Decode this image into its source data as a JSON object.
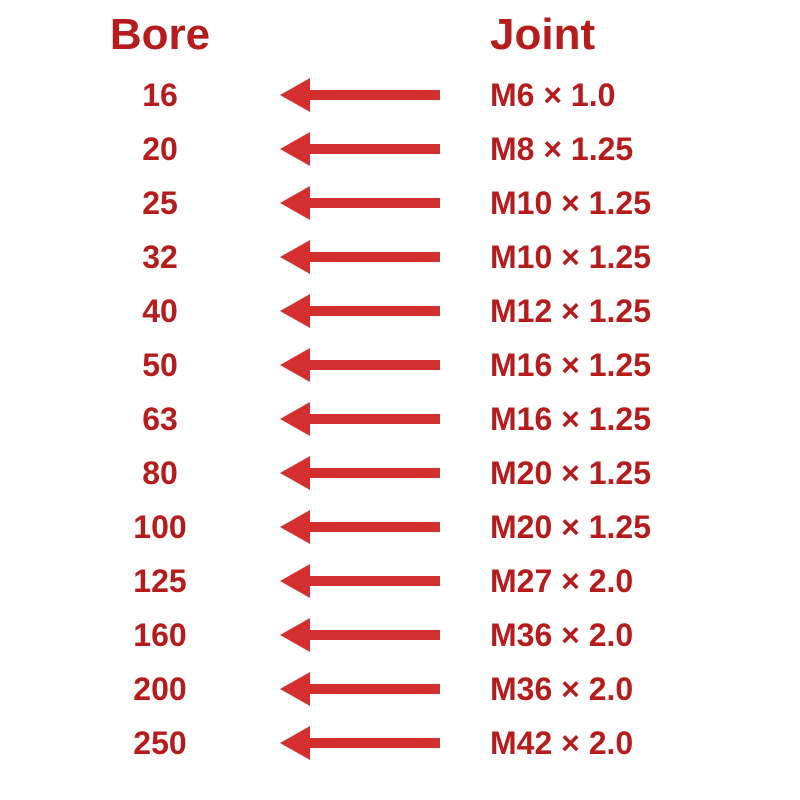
{
  "colors": {
    "text": "#b71c1c",
    "arrow": "#d32f2f",
    "background": "#ffffff"
  },
  "typography": {
    "header_fontsize": 44,
    "body_fontsize": 32,
    "font_weight": "bold",
    "font_family": "Arial, Helvetica, sans-serif"
  },
  "headers": {
    "bore": "Bore",
    "joint": "Joint"
  },
  "rows": [
    {
      "bore": "16",
      "joint": "M6 × 1.0"
    },
    {
      "bore": "20",
      "joint": "M8 × 1.25"
    },
    {
      "bore": "25",
      "joint": "M10 × 1.25"
    },
    {
      "bore": "32",
      "joint": "M10 × 1.25"
    },
    {
      "bore": "40",
      "joint": "M12 × 1.25"
    },
    {
      "bore": "50",
      "joint": "M16 × 1.25"
    },
    {
      "bore": "63",
      "joint": "M16 × 1.25"
    },
    {
      "bore": "80",
      "joint": "M20 × 1.25"
    },
    {
      "bore": "100",
      "joint": "M20 × 1.25"
    },
    {
      "bore": "125",
      "joint": "M27 × 2.0"
    },
    {
      "bore": "160",
      "joint": "M36 × 2.0"
    },
    {
      "bore": "200",
      "joint": "M36 × 2.0"
    },
    {
      "bore": "250",
      "joint": "M42 × 2.0"
    }
  ],
  "arrow_style": {
    "shaft_thickness": 10,
    "head_length": 30,
    "head_width": 34,
    "total_length": 160
  }
}
